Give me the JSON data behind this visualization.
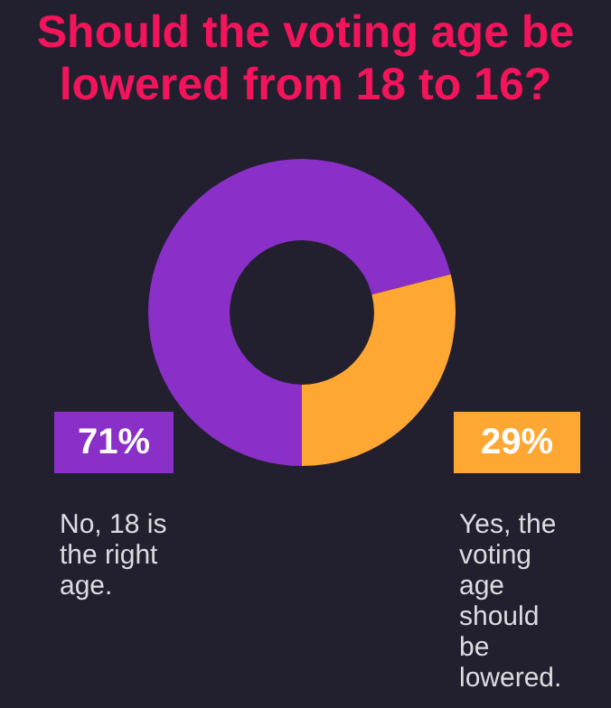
{
  "chart_data": {
    "type": "donut",
    "title": "Should the voting age be lowered from 18 to 16?",
    "categories": [
      "No, 18 is the right age.",
      "Yes, the voting age should be lowered."
    ],
    "values": [
      71,
      29
    ],
    "colors": [
      "#8a2fc8",
      "#ffa733"
    ],
    "value_labels": [
      "71%",
      "29%"
    ],
    "legend": false
  }
}
